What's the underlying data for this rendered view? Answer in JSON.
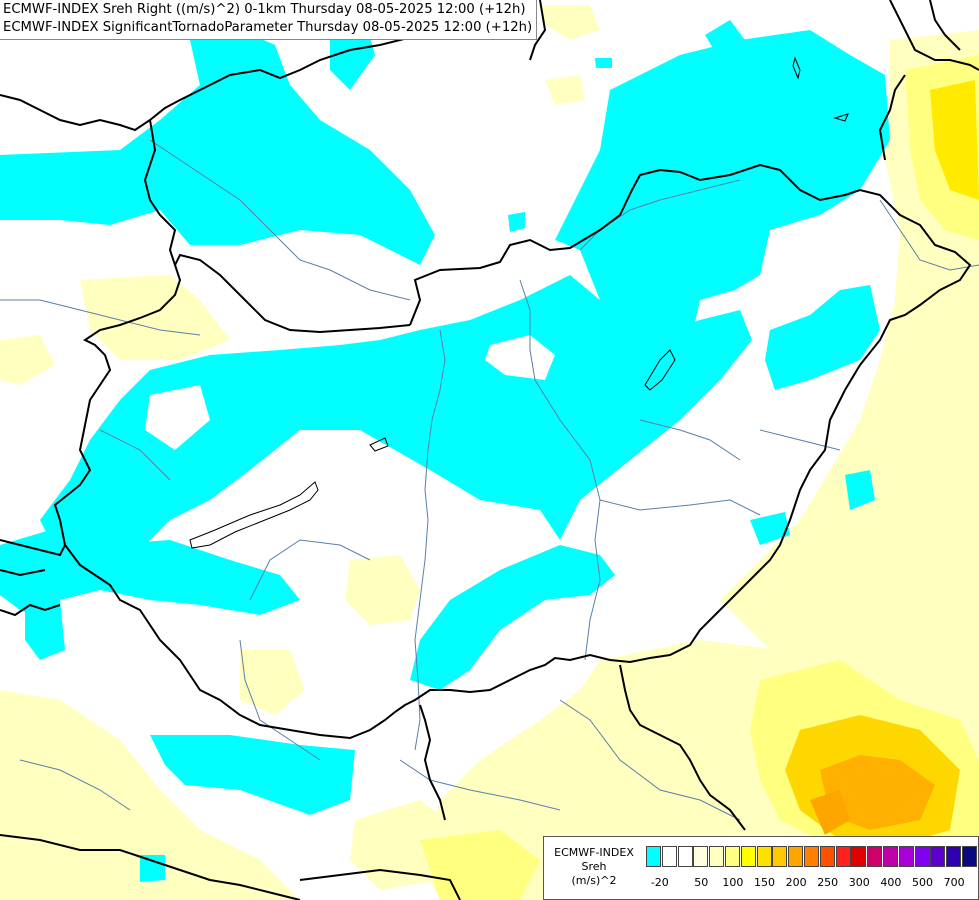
{
  "title": {
    "line1": "ECMWF-INDEX Sreh Right ((m/s)^2) 0-1km Thursday 08-05-2025 12:00 (+12h)",
    "line2": "ECMWF-INDEX SignificantTornadoParameter Thursday 08-05-2025 12:00 (+12h)"
  },
  "colors": {
    "cyan": "#00ffff",
    "pale_yellow": "#ffffc0",
    "light_yellow": "#ffff80",
    "yellow": "#ffff00",
    "gold": "#ffd700",
    "orange": "#ffa500",
    "borders": "#000000",
    "rivers": "#5a7fa8"
  },
  "legend": {
    "name": "ECMWF-INDEX",
    "parameter": "Sreh",
    "unit": "(m/s)^2",
    "swatch_colors": [
      "#00ffff",
      "#ffffff",
      "#ffffff",
      "#ffffe0",
      "#ffffc0",
      "#ffff80",
      "#ffff00",
      "#ffe000",
      "#ffc800",
      "#ffa500",
      "#ff8000",
      "#ff5000",
      "#ff2020",
      "#e00000",
      "#d0006a",
      "#c000a8",
      "#a800d8",
      "#8000f0",
      "#5c00d0",
      "#3000b0",
      "#0a0a80"
    ],
    "ticks": [
      "-20",
      "50",
      "100",
      "150",
      "200",
      "250",
      "300",
      "400",
      "500",
      "700"
    ]
  }
}
